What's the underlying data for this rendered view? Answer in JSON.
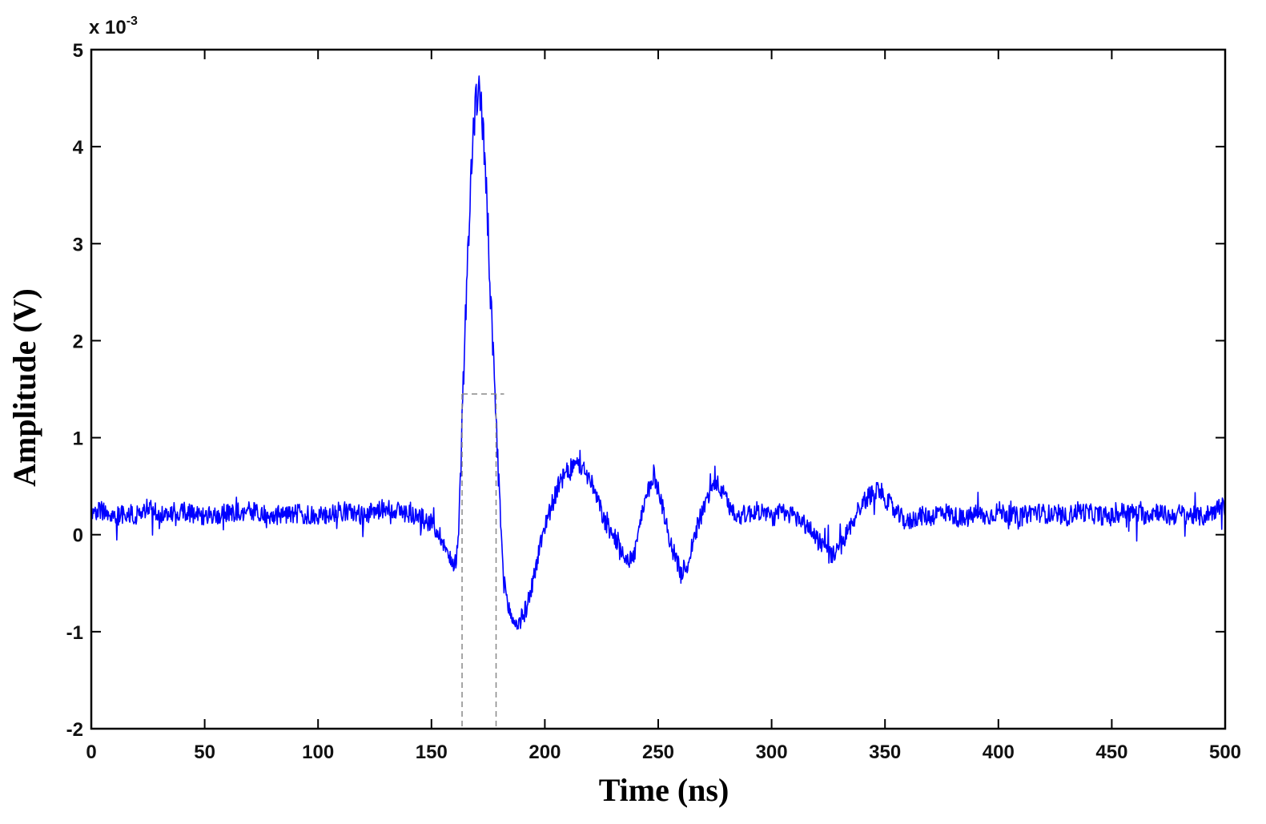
{
  "chart_data": {
    "type": "line",
    "xlabel": "Time (ns)",
    "ylabel": "Amplitude (V)",
    "y_exponent_base": "x 10",
    "y_exponent_power": "-3",
    "xlim": [
      0,
      500
    ],
    "ylim": [
      -2,
      5
    ],
    "x_ticks": [
      0,
      50,
      100,
      150,
      200,
      250,
      300,
      350,
      400,
      450,
      500
    ],
    "y_ticks": [
      -2,
      -1,
      0,
      1,
      2,
      3,
      4,
      5
    ],
    "grid": false,
    "legend": "none",
    "line_color": "#0000ff",
    "series": [
      {
        "x": [
          0,
          5,
          10,
          15,
          20,
          25,
          30,
          40,
          50,
          60,
          70,
          80,
          90,
          100,
          110,
          120,
          130,
          140,
          145,
          150,
          152,
          155,
          157,
          159,
          161,
          162,
          163,
          164,
          165,
          166,
          167,
          168,
          169,
          170,
          171,
          172,
          173,
          174,
          175,
          176,
          177,
          178,
          179,
          180,
          181,
          182,
          184,
          186,
          188,
          190,
          192,
          194,
          196,
          198,
          200,
          203,
          206,
          209,
          212,
          215,
          218,
          221,
          224,
          227,
          230,
          233,
          236,
          239,
          242,
          245,
          248,
          251,
          254,
          257,
          260,
          263,
          266,
          269,
          272,
          275,
          278,
          281,
          284,
          287,
          290,
          295,
          300,
          305,
          310,
          315,
          320,
          323,
          326,
          329,
          332,
          335,
          338,
          341,
          344,
          347,
          350,
          355,
          360,
          365,
          370,
          375,
          380,
          385,
          390,
          395,
          400,
          405,
          410,
          415,
          420,
          425,
          430,
          435,
          440,
          445,
          450,
          455,
          460,
          465,
          470,
          475,
          480,
          485,
          490,
          495,
          500
        ],
        "y": [
          0.2,
          0.25,
          0.18,
          0.22,
          0.2,
          0.28,
          0.2,
          0.25,
          0.18,
          0.22,
          0.24,
          0.2,
          0.22,
          0.18,
          0.25,
          0.2,
          0.28,
          0.22,
          0.18,
          0.12,
          0.05,
          -0.05,
          -0.2,
          -0.3,
          -0.25,
          0.1,
          0.7,
          1.5,
          2.2,
          2.9,
          3.5,
          3.95,
          4.3,
          4.5,
          4.65,
          4.4,
          4.1,
          3.6,
          3.1,
          2.5,
          1.9,
          1.4,
          0.9,
          0.4,
          -0.1,
          -0.5,
          -0.75,
          -0.9,
          -0.92,
          -0.85,
          -0.75,
          -0.55,
          -0.35,
          -0.1,
          0.1,
          0.3,
          0.5,
          0.62,
          0.7,
          0.72,
          0.65,
          0.5,
          0.3,
          0.1,
          0.0,
          -0.1,
          -0.25,
          -0.25,
          0.1,
          0.4,
          0.62,
          0.4,
          0.05,
          -0.2,
          -0.4,
          -0.3,
          0.0,
          0.2,
          0.4,
          0.55,
          0.45,
          0.3,
          0.22,
          0.2,
          0.22,
          0.25,
          0.18,
          0.22,
          0.2,
          0.1,
          -0.02,
          -0.12,
          -0.22,
          -0.18,
          -0.05,
          0.1,
          0.25,
          0.35,
          0.42,
          0.48,
          0.38,
          0.22,
          0.12,
          0.2,
          0.18,
          0.25,
          0.2,
          0.15,
          0.22,
          0.18,
          0.25,
          0.2,
          0.18,
          0.24,
          0.22,
          0.2,
          0.18,
          0.25,
          0.22,
          0.2,
          0.18,
          0.24,
          0.22,
          0.2,
          0.25,
          0.18,
          0.22,
          0.2,
          0.18,
          0.25,
          0.3
        ]
      }
    ],
    "reference_lines": {
      "level": 1.45,
      "x_start": 163.5,
      "x_end": 178.5,
      "color": "#888888"
    }
  }
}
